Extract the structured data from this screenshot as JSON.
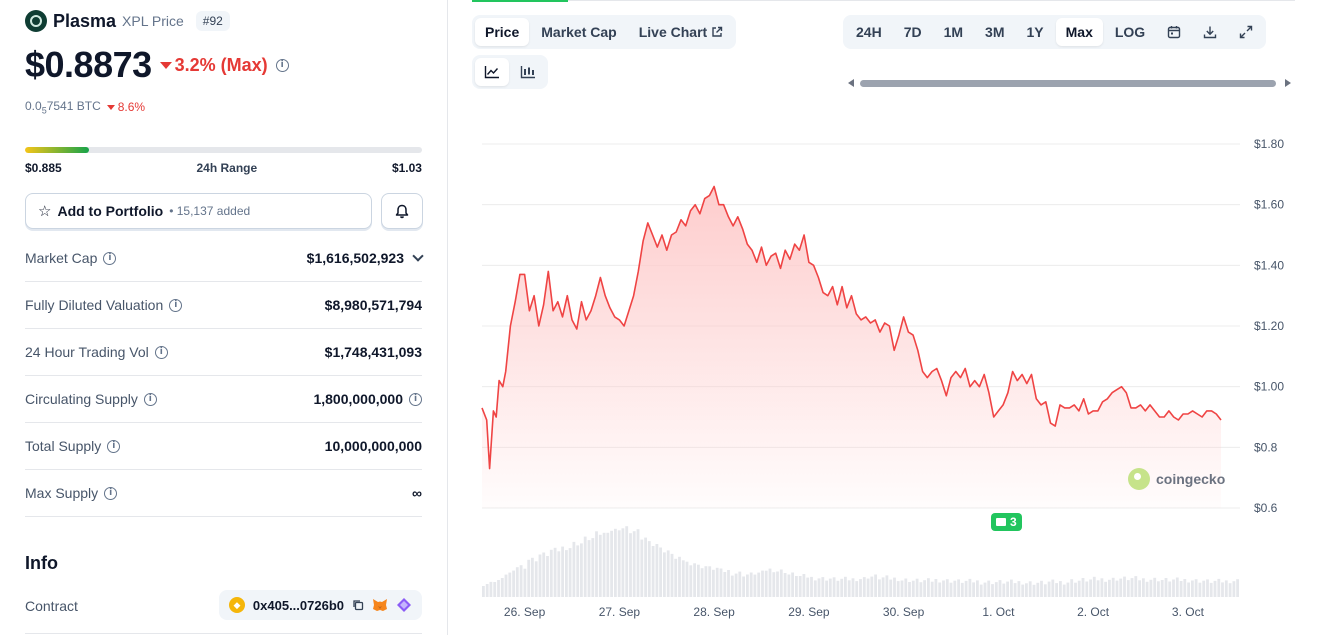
{
  "coin": {
    "name": "Plasma",
    "symbol_label": "XPL Price",
    "rank": "#92",
    "price": "$0.8873",
    "change": "3.2% (Max)",
    "btc_price_prefix": "0.0",
    "btc_price_sub": "5",
    "btc_price_suffix": "7541 BTC",
    "btc_change": "8.6%"
  },
  "range": {
    "low": "$0.885",
    "label": "24h Range",
    "high": "$1.03",
    "fill_fraction": 0.16
  },
  "portfolio": {
    "label": "Add to Portfolio",
    "added": "• 15,137 added"
  },
  "stats": [
    {
      "label": "Market Cap",
      "value": "$1,616,502,923",
      "extra": "chevron-down"
    },
    {
      "label": "Fully Diluted Valuation",
      "value": "$8,980,571,794",
      "extra": ""
    },
    {
      "label": "24 Hour Trading Vol",
      "value": "$1,748,431,093",
      "extra": ""
    },
    {
      "label": "Circulating Supply",
      "value": "1,800,000,000",
      "extra": "info"
    },
    {
      "label": "Total Supply",
      "value": "10,000,000,000",
      "extra": ""
    },
    {
      "label": "Max Supply",
      "value": "∞",
      "extra": ""
    }
  ],
  "info": {
    "title": "Info",
    "contract_label": "Contract",
    "contract_value": "0x405...0726b0"
  },
  "chart_tabs": [
    "Price",
    "Market Cap",
    "Live Chart"
  ],
  "active_chart_tab": "Price",
  "time_ranges": [
    "24H",
    "7D",
    "1M",
    "3M",
    "1Y",
    "Max",
    "LOG"
  ],
  "active_time_range": "Max",
  "watermark": "coingecko",
  "event_count": "3",
  "colors": {
    "line": "#ef4444",
    "fill": "#fecaca",
    "volume": "#e5e7eb",
    "negative": "#e53935",
    "positive": "#22c55e"
  },
  "chart_data": {
    "type": "line",
    "title": "",
    "xlabel": "",
    "ylabel": "",
    "ylim": [
      0.6,
      1.8
    ],
    "y_ticks": [
      "$1.80",
      "$1.60",
      "$1.40",
      "$1.20",
      "$1.00",
      "$0.8",
      "$0.6"
    ],
    "y_tick_values": [
      1.8,
      1.6,
      1.4,
      1.2,
      1.0,
      0.8,
      0.6
    ],
    "x_ticks": [
      "26. Sep",
      "27. Sep",
      "28. Sep",
      "29. Sep",
      "30. Sep",
      "1. Oct",
      "2. Oct",
      "3. Oct"
    ],
    "x_range_days": [
      0,
      8.0
    ],
    "x_tick_positions_days": [
      0.45,
      1.45,
      2.45,
      3.45,
      4.45,
      5.45,
      6.45,
      7.45
    ],
    "series": [
      {
        "values": [
          [
            0.0,
            0.93
          ],
          [
            0.05,
            0.89
          ],
          [
            0.08,
            0.73
          ],
          [
            0.12,
            0.92
          ],
          [
            0.15,
            0.9
          ],
          [
            0.18,
            1.02
          ],
          [
            0.22,
            1.0
          ],
          [
            0.25,
            1.05
          ],
          [
            0.3,
            1.2
          ],
          [
            0.35,
            1.28
          ],
          [
            0.4,
            1.37
          ],
          [
            0.45,
            1.37
          ],
          [
            0.5,
            1.25
          ],
          [
            0.55,
            1.3
          ],
          [
            0.6,
            1.2
          ],
          [
            0.65,
            1.27
          ],
          [
            0.7,
            1.38
          ],
          [
            0.75,
            1.25
          ],
          [
            0.8,
            1.28
          ],
          [
            0.85,
            1.23
          ],
          [
            0.9,
            1.3
          ],
          [
            0.95,
            1.22
          ],
          [
            1.0,
            1.19
          ],
          [
            1.05,
            1.28
          ],
          [
            1.1,
            1.22
          ],
          [
            1.15,
            1.25
          ],
          [
            1.2,
            1.3
          ],
          [
            1.25,
            1.36
          ],
          [
            1.3,
            1.3
          ],
          [
            1.35,
            1.26
          ],
          [
            1.4,
            1.23
          ],
          [
            1.45,
            1.22
          ],
          [
            1.5,
            1.2
          ],
          [
            1.55,
            1.25
          ],
          [
            1.6,
            1.3
          ],
          [
            1.65,
            1.38
          ],
          [
            1.7,
            1.48
          ],
          [
            1.75,
            1.54
          ],
          [
            1.8,
            1.5
          ],
          [
            1.85,
            1.46
          ],
          [
            1.9,
            1.5
          ],
          [
            1.95,
            1.45
          ],
          [
            2.0,
            1.5
          ],
          [
            2.05,
            1.51
          ],
          [
            2.1,
            1.55
          ],
          [
            2.15,
            1.53
          ],
          [
            2.2,
            1.58
          ],
          [
            2.25,
            1.6
          ],
          [
            2.3,
            1.57
          ],
          [
            2.35,
            1.62
          ],
          [
            2.4,
            1.63
          ],
          [
            2.45,
            1.66
          ],
          [
            2.5,
            1.6
          ],
          [
            2.55,
            1.6
          ],
          [
            2.6,
            1.56
          ],
          [
            2.65,
            1.53
          ],
          [
            2.7,
            1.56
          ],
          [
            2.75,
            1.52
          ],
          [
            2.8,
            1.47
          ],
          [
            2.85,
            1.45
          ],
          [
            2.9,
            1.41
          ],
          [
            2.95,
            1.46
          ],
          [
            3.0,
            1.4
          ],
          [
            3.05,
            1.43
          ],
          [
            3.1,
            1.44
          ],
          [
            3.15,
            1.39
          ],
          [
            3.2,
            1.45
          ],
          [
            3.25,
            1.42
          ],
          [
            3.3,
            1.47
          ],
          [
            3.35,
            1.45
          ],
          [
            3.4,
            1.5
          ],
          [
            3.45,
            1.41
          ],
          [
            3.5,
            1.4
          ],
          [
            3.55,
            1.36
          ],
          [
            3.6,
            1.31
          ],
          [
            3.65,
            1.3
          ],
          [
            3.7,
            1.33
          ],
          [
            3.75,
            1.27
          ],
          [
            3.8,
            1.33
          ],
          [
            3.85,
            1.26
          ],
          [
            3.9,
            1.3
          ],
          [
            3.95,
            1.24
          ],
          [
            4.0,
            1.22
          ],
          [
            4.05,
            1.23
          ],
          [
            4.1,
            1.21
          ],
          [
            4.15,
            1.22
          ],
          [
            4.2,
            1.18
          ],
          [
            4.25,
            1.21
          ],
          [
            4.3,
            1.2
          ],
          [
            4.35,
            1.12
          ],
          [
            4.4,
            1.17
          ],
          [
            4.45,
            1.23
          ],
          [
            4.5,
            1.18
          ],
          [
            4.55,
            1.17
          ],
          [
            4.6,
            1.12
          ],
          [
            4.65,
            1.05
          ],
          [
            4.7,
            1.03
          ],
          [
            4.75,
            1.05
          ],
          [
            4.8,
            1.06
          ],
          [
            4.85,
            1.02
          ],
          [
            4.9,
            0.97
          ],
          [
            4.95,
            1.03
          ],
          [
            5.0,
            1.05
          ],
          [
            5.05,
            1.03
          ],
          [
            5.1,
            1.06
          ],
          [
            5.15,
            1.0
          ],
          [
            5.2,
            1.02
          ],
          [
            5.25,
            1.0
          ],
          [
            5.3,
            1.04
          ],
          [
            5.35,
            0.98
          ],
          [
            5.4,
            0.9
          ],
          [
            5.45,
            0.92
          ],
          [
            5.5,
            0.94
          ],
          [
            5.55,
            0.98
          ],
          [
            5.6,
            1.05
          ],
          [
            5.65,
            1.02
          ],
          [
            5.7,
            1.04
          ],
          [
            5.75,
            1.01
          ],
          [
            5.8,
            1.04
          ],
          [
            5.85,
            0.96
          ],
          [
            5.9,
            0.94
          ],
          [
            5.95,
            0.95
          ],
          [
            6.0,
            0.88
          ],
          [
            6.05,
            0.87
          ],
          [
            6.1,
            0.94
          ],
          [
            6.15,
            0.93
          ],
          [
            6.2,
            0.93
          ],
          [
            6.25,
            0.94
          ],
          [
            6.3,
            0.92
          ],
          [
            6.35,
            0.96
          ],
          [
            6.4,
            0.91
          ],
          [
            6.45,
            0.92
          ],
          [
            6.5,
            0.92
          ],
          [
            6.55,
            0.95
          ],
          [
            6.6,
            0.96
          ],
          [
            6.65,
            0.98
          ],
          [
            6.7,
            0.99
          ],
          [
            6.75,
            1.0
          ],
          [
            6.8,
            0.98
          ],
          [
            6.85,
            0.93
          ],
          [
            6.9,
            0.93
          ],
          [
            6.95,
            0.94
          ],
          [
            7.0,
            0.92
          ],
          [
            7.05,
            0.94
          ],
          [
            7.1,
            0.92
          ],
          [
            7.15,
            0.9
          ],
          [
            7.2,
            0.9
          ],
          [
            7.25,
            0.92
          ],
          [
            7.3,
            0.9
          ],
          [
            7.35,
            0.89
          ],
          [
            7.4,
            0.91
          ],
          [
            7.45,
            0.91
          ],
          [
            7.5,
            0.92
          ],
          [
            7.55,
            0.91
          ],
          [
            7.6,
            0.9
          ],
          [
            7.65,
            0.92
          ],
          [
            7.7,
            0.92
          ],
          [
            7.75,
            0.91
          ],
          [
            7.8,
            0.89
          ]
        ]
      }
    ],
    "volume_relative": [
      0.2,
      0.25,
      0.35,
      0.45,
      0.55,
      0.62,
      0.68,
      0.72,
      0.78,
      0.85,
      0.92,
      0.97,
      1.0,
      0.95,
      0.85,
      0.75,
      0.65,
      0.55,
      0.5,
      0.45,
      0.42,
      0.38,
      0.35,
      0.33,
      0.35,
      0.4,
      0.38,
      0.33,
      0.3,
      0.28,
      0.27,
      0.26,
      0.26,
      0.27,
      0.3,
      0.28,
      0.27,
      0.25,
      0.24,
      0.24,
      0.25,
      0.24,
      0.23,
      0.23,
      0.22,
      0.22,
      0.22,
      0.22,
      0.21,
      0.21,
      0.22,
      0.22,
      0.24,
      0.25,
      0.26,
      0.26,
      0.27,
      0.27,
      0.26,
      0.26,
      0.25,
      0.25,
      0.25,
      0.24,
      0.23,
      0.23,
      0.24
    ]
  }
}
